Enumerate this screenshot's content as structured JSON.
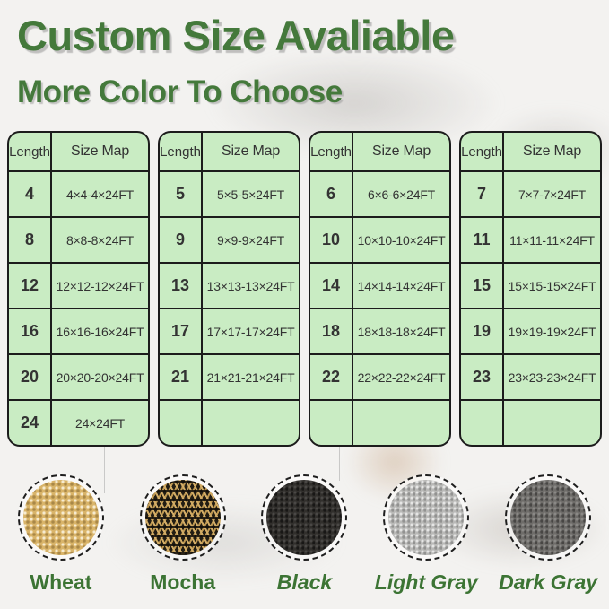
{
  "header": {
    "title": "Custom Size Avaliable",
    "subtitle": "More Color To Choose"
  },
  "size_tables": {
    "column_headers": [
      "Length",
      "Size Map"
    ],
    "tables": [
      {
        "rows": [
          [
            "4",
            "4×4-4×24FT"
          ],
          [
            "8",
            "8×8-8×24FT"
          ],
          [
            "12",
            "12×12-12×24FT"
          ],
          [
            "16",
            "16×16-16×24FT"
          ],
          [
            "20",
            "20×20-20×24FT"
          ],
          [
            "24",
            "24×24FT"
          ]
        ]
      },
      {
        "rows": [
          [
            "5",
            "5×5-5×24FT"
          ],
          [
            "9",
            "9×9-9×24FT"
          ],
          [
            "13",
            "13×13-13×24FT"
          ],
          [
            "17",
            "17×17-17×24FT"
          ],
          [
            "21",
            "21×21-21×24FT"
          ],
          [
            "",
            ""
          ]
        ]
      },
      {
        "rows": [
          [
            "6",
            "6×6-6×24FT"
          ],
          [
            "10",
            "10×10-10×24FT"
          ],
          [
            "14",
            "14×14-14×24FT"
          ],
          [
            "18",
            "18×18-18×24FT"
          ],
          [
            "22",
            "22×22-22×24FT"
          ],
          [
            "",
            ""
          ]
        ]
      },
      {
        "rows": [
          [
            "7",
            "7×7-7×24FT"
          ],
          [
            "11",
            "11×11-11×24FT"
          ],
          [
            "15",
            "15×15-15×24FT"
          ],
          [
            "19",
            "19×19-19×24FT"
          ],
          [
            "23",
            "23×23-23×24FT"
          ],
          [
            "",
            ""
          ]
        ]
      }
    ]
  },
  "color_swatches": [
    {
      "label": "Wheat",
      "texture": "wheat",
      "base_color": "#d9b469",
      "italic": false
    },
    {
      "label": "Mocha",
      "texture": "mocha",
      "base_color": "#221d14",
      "italic": false
    },
    {
      "label": "Black",
      "texture": "black",
      "base_color": "#312f2c",
      "italic": true
    },
    {
      "label": "Light Gray",
      "texture": "light-gray",
      "base_color": "#b9b9b7",
      "italic": true
    },
    {
      "label": "Dark Gray",
      "texture": "dark-gray",
      "base_color": "#6e6c69",
      "italic": true
    }
  ],
  "colors": {
    "title_green": "#44793b",
    "label_green": "#3c7434",
    "table_background": "#c9ecc3",
    "table_border": "#1c1c1c",
    "cell_text": "#333333"
  }
}
